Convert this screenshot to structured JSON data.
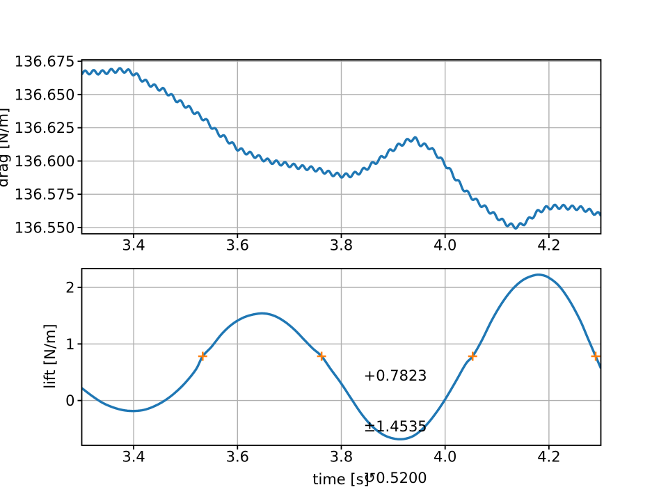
{
  "figure": {
    "background": "#ffffff",
    "line_color": "#1f77b4",
    "marker_color": "#ff7f0e",
    "grid_color": "#b0b0b0",
    "spine_color": "#000000",
    "text_color": "#000000"
  },
  "chart_data": [
    {
      "type": "line",
      "title": "",
      "xlabel": "",
      "ylabel": "drag [N/m]",
      "grid": true,
      "legend": "none",
      "xlim": [
        3.3,
        4.3
      ],
      "ylim": [
        136.5453,
        136.67605
      ],
      "xticks": [
        3.4,
        3.6,
        3.8,
        4.0,
        4.2
      ],
      "xtick_labels": [
        "3.4",
        "3.6",
        "3.8",
        "4.0",
        "4.2"
      ],
      "yticks": [
        136.55,
        136.575,
        136.6,
        136.625,
        136.65,
        136.675
      ],
      "ytick_labels": [
        "136.550",
        "136.575",
        "136.600",
        "136.625",
        "136.650",
        "136.675"
      ],
      "series": [
        {
          "name": "drag",
          "x": [
            3.3,
            3.32,
            3.34,
            3.36,
            3.38,
            3.4,
            3.42,
            3.44,
            3.46,
            3.48,
            3.5,
            3.52,
            3.54,
            3.56,
            3.58,
            3.6,
            3.62,
            3.64,
            3.66,
            3.68,
            3.7,
            3.72,
            3.74,
            3.76,
            3.78,
            3.8,
            3.82,
            3.84,
            3.86,
            3.88,
            3.9,
            3.92,
            3.94,
            3.955,
            3.97,
            4.0,
            4.02,
            4.04,
            4.06,
            4.08,
            4.1,
            4.12,
            4.14,
            4.16,
            4.18,
            4.2,
            4.22,
            4.24,
            4.26,
            4.28,
            4.3
          ],
          "y": [
            136.6662,
            136.6668,
            136.6666,
            136.6678,
            136.6681,
            136.6658,
            136.6602,
            136.656,
            136.6526,
            136.6466,
            136.6416,
            136.636,
            136.63,
            136.622,
            136.616,
            136.6095,
            136.606,
            136.603,
            136.6,
            136.5985,
            136.597,
            136.5955,
            136.5945,
            136.593,
            136.5906,
            136.5892,
            136.5896,
            136.5926,
            136.5976,
            136.603,
            136.609,
            136.6136,
            136.6166,
            136.612,
            136.6102,
            136.5976,
            136.587,
            136.5772,
            136.57,
            136.564,
            136.558,
            136.5526,
            136.551,
            136.5556,
            136.562,
            136.565,
            136.5656,
            136.565,
            136.5645,
            136.5622,
            136.5592
          ],
          "ripple": {
            "amplitude": 0.0016,
            "wavelength": 0.01676,
            "phase": 5.5
          }
        }
      ]
    },
    {
      "type": "line",
      "title": "",
      "xlabel": "time [s]",
      "ylabel": "lift [N/m]",
      "grid": true,
      "legend": "none",
      "xlim": [
        3.3,
        4.3
      ],
      "ylim": [
        -0.792,
        2.332
      ],
      "xticks": [
        3.4,
        3.6,
        3.8,
        4.0,
        4.2
      ],
      "xtick_labels": [
        "3.4",
        "3.6",
        "3.8",
        "4.0",
        "4.2"
      ],
      "yticks": [
        0,
        1,
        2
      ],
      "ytick_labels": [
        "0",
        "1",
        "2"
      ],
      "series": [
        {
          "name": "lift",
          "x": [
            3.3,
            3.32,
            3.34,
            3.36,
            3.38,
            3.4,
            3.42,
            3.44,
            3.46,
            3.48,
            3.5,
            3.52,
            3.533,
            3.55,
            3.57,
            3.59,
            3.61,
            3.63,
            3.65,
            3.67,
            3.69,
            3.71,
            3.73,
            3.745,
            3.762,
            3.78,
            3.8,
            3.82,
            3.84,
            3.86,
            3.88,
            3.9,
            3.92,
            3.94,
            3.96,
            3.98,
            4.0,
            4.02,
            4.04,
            4.053,
            4.07,
            4.09,
            4.11,
            4.13,
            4.15,
            4.17,
            4.185,
            4.2,
            4.22,
            4.24,
            4.26,
            4.275,
            4.29,
            4.3
          ],
          "y": [
            0.22,
            0.08,
            -0.04,
            -0.12,
            -0.17,
            -0.185,
            -0.165,
            -0.1,
            0.0,
            0.14,
            0.32,
            0.55,
            0.7823,
            0.95,
            1.18,
            1.35,
            1.46,
            1.52,
            1.54,
            1.5,
            1.4,
            1.25,
            1.06,
            0.92,
            0.7823,
            0.55,
            0.3,
            0.02,
            -0.25,
            -0.46,
            -0.6,
            -0.67,
            -0.68,
            -0.62,
            -0.47,
            -0.25,
            0.02,
            0.33,
            0.65,
            0.7823,
            1.05,
            1.42,
            1.73,
            1.97,
            2.13,
            2.21,
            2.22,
            2.17,
            2.02,
            1.76,
            1.42,
            1.1,
            0.7823,
            0.57
          ]
        }
      ],
      "markers": {
        "symbol": "plus",
        "points": [
          [
            3.533,
            0.7823
          ],
          [
            3.762,
            0.7823
          ],
          [
            4.053,
            0.7823
          ],
          [
            4.29,
            0.7823
          ]
        ]
      },
      "annotation": {
        "anchor": [
          3.843,
          1.19
        ],
        "line1": "+0.7823",
        "line2": "±1.4535",
        "line3": "↺0.5200"
      }
    }
  ]
}
